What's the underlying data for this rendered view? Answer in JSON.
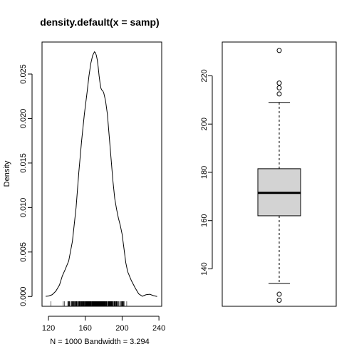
{
  "chart_data": [
    {
      "type": "line",
      "title": "density.default(x = samp)",
      "xlabel": "N = 1000   Bandwidth = 3.294",
      "ylabel": "Density",
      "xlim": [
        113,
        243
      ],
      "ylim": [
        -0.0011,
        0.0286
      ],
      "x_ticks": [
        "120",
        "160",
        "200",
        "240"
      ],
      "y_ticks": [
        "0.000",
        "0.005",
        "0.010",
        "0.015",
        "0.020",
        "0.025"
      ],
      "grid": false,
      "series": [
        {
          "x": [
            117,
            120,
            124,
            128,
            132,
            135,
            138,
            142,
            146,
            150,
            153,
            156,
            159,
            162,
            164,
            166,
            168,
            170,
            171,
            172,
            173,
            174,
            175,
            176,
            177,
            178,
            179,
            180,
            182,
            184,
            186,
            188,
            190,
            192,
            194,
            196,
            198,
            200,
            202,
            204,
            206,
            208,
            210,
            214,
            218,
            222,
            226,
            230,
            234,
            238
          ],
          "y": [
            2e-05,
            5e-05,
            0.0002,
            0.0006,
            0.0013,
            0.0023,
            0.003,
            0.004,
            0.0062,
            0.01,
            0.014,
            0.0175,
            0.0205,
            0.023,
            0.0248,
            0.0262,
            0.0271,
            0.0275,
            0.0274,
            0.0271,
            0.0266,
            0.0258,
            0.0248,
            0.024,
            0.0234,
            0.0232,
            0.0231,
            0.0229,
            0.022,
            0.0205,
            0.018,
            0.0155,
            0.013,
            0.011,
            0.0098,
            0.0088,
            0.008,
            0.007,
            0.0054,
            0.0038,
            0.0028,
            0.0023,
            0.0018,
            0.001,
            0.0003,
            3e-05,
            0.0002,
            0.00025,
            0.0001,
            0.0
          ]
        }
      ],
      "rug_ranges": [
        [
          130,
          210
        ]
      ]
    },
    {
      "type": "box",
      "title": "",
      "xlabel": "",
      "ylabel": "",
      "ylim": [
        124.5,
        234
      ],
      "y_ticks": [
        "140",
        "160",
        "180",
        "200",
        "220"
      ],
      "box": {
        "whisker_low": 134,
        "q1": 162,
        "median": 171.5,
        "q3": 181.5,
        "whisker_high": 209
      },
      "outliers": [
        127,
        129.5,
        212.5,
        215,
        217,
        230.5
      ],
      "box_fill": "#d3d3d3"
    }
  ]
}
